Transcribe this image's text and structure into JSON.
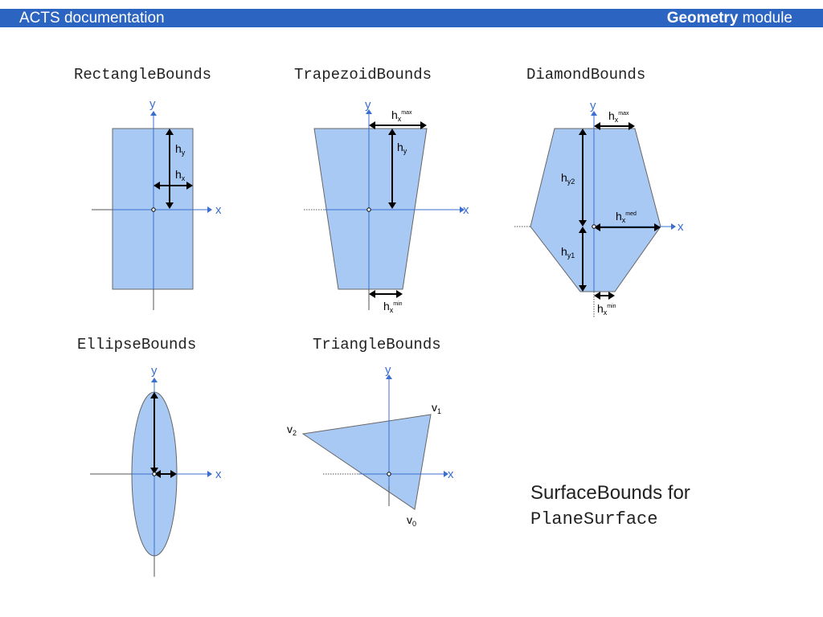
{
  "header": {
    "left_title": "ACTS documentation",
    "right_bold": "Geometry",
    "right_rest": " module"
  },
  "diagrams": {
    "rectangle": {
      "title": "RectangleBounds",
      "axis_x": "x",
      "axis_y": "y",
      "label_hy": "h",
      "label_hy_sub": "y",
      "label_hx": "h",
      "label_hx_sub": "x"
    },
    "trapezoid": {
      "title": "TrapezoidBounds",
      "axis_x": "x",
      "axis_y": "y",
      "label_hxmax": "h",
      "label_hxmax_sub": "x",
      "label_hxmax_sup": "max",
      "label_hy": "h",
      "label_hy_sub": "y",
      "label_hxmin": "h",
      "label_hxmin_sub": "x",
      "label_hxmin_sup": "min"
    },
    "diamond": {
      "title": "DiamondBounds",
      "axis_x": "x",
      "axis_y": "y",
      "label_hxmax": "h",
      "label_hxmax_sub": "x",
      "label_hxmax_sup": "max",
      "label_hy2": "h",
      "label_hy2_sub": "y2",
      "label_hxmed": "h",
      "label_hxmed_sub": "x",
      "label_hxmed_sup": "med",
      "label_hy1": "h",
      "label_hy1_sub": "y1",
      "label_hxmin": "h",
      "label_hxmin_sub": "x",
      "label_hxmin_sup": "min"
    },
    "ellipse": {
      "title": "EllipseBounds",
      "axis_x": "x",
      "axis_y": "y"
    },
    "triangle": {
      "title": "TriangleBounds",
      "axis_x": "x",
      "axis_y": "y",
      "label_v0": "v",
      "label_v0_sub": "0",
      "label_v1": "v",
      "label_v1_sub": "1",
      "label_v2": "v",
      "label_v2_sub": "2"
    }
  },
  "caption": {
    "line1": "SurfaceBounds for",
    "line2": "PlaneSurface"
  },
  "colors": {
    "header_bg": "#2c64c1",
    "shape_fill": "#a9c9f5",
    "axis": "#3a6fd0"
  }
}
